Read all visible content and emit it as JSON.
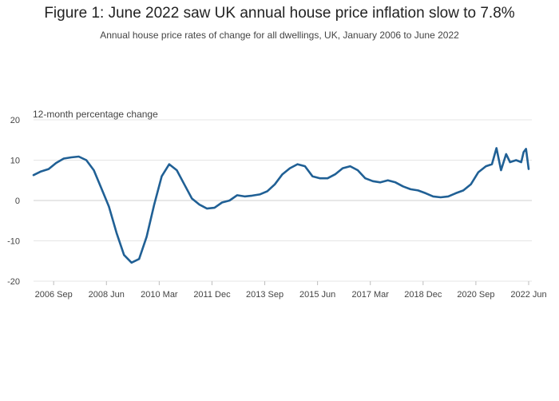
{
  "chart_data": {
    "type": "line",
    "title": "Figure 1: June 2022 saw UK annual house price inflation slow to 7.8%",
    "subtitle": "Annual house price rates of change for all dwellings, UK, January 2006 to June 2022",
    "ylabel": "12-month percentage change",
    "xlabel": "",
    "ylim": [
      -20,
      20
    ],
    "yticks": [
      20,
      10,
      0,
      -10,
      -20
    ],
    "xticks": [
      {
        "label": "2006 Sep",
        "t": 2006.667
      },
      {
        "label": "2008 Jun",
        "t": 2008.417
      },
      {
        "label": "2010 Mar",
        "t": 2010.167
      },
      {
        "label": "2011 Dec",
        "t": 2011.917
      },
      {
        "label": "2013 Sep",
        "t": 2013.667
      },
      {
        "label": "2015 Jun",
        "t": 2015.417
      },
      {
        "label": "2017 Mar",
        "t": 2017.167
      },
      {
        "label": "2018 Dec",
        "t": 2018.917
      },
      {
        "label": "2020 Sep",
        "t": 2020.667
      },
      {
        "label": "2022 Jun",
        "t": 2022.417
      }
    ],
    "xlim": [
      2006.0,
      2022.417
    ],
    "color": "#206095",
    "series": [
      {
        "name": "12-month percentage change",
        "points": [
          [
            2006.0,
            6.3
          ],
          [
            2006.25,
            7.2
          ],
          [
            2006.5,
            7.8
          ],
          [
            2006.75,
            9.3
          ],
          [
            2007.0,
            10.4
          ],
          [
            2007.25,
            10.7
          ],
          [
            2007.5,
            10.9
          ],
          [
            2007.75,
            10.0
          ],
          [
            2008.0,
            7.5
          ],
          [
            2008.25,
            3.0
          ],
          [
            2008.5,
            -1.5
          ],
          [
            2008.75,
            -8.0
          ],
          [
            2009.0,
            -13.5
          ],
          [
            2009.25,
            -15.4
          ],
          [
            2009.5,
            -14.5
          ],
          [
            2009.75,
            -9.0
          ],
          [
            2010.0,
            -1.0
          ],
          [
            2010.25,
            6.0
          ],
          [
            2010.5,
            9.0
          ],
          [
            2010.75,
            7.5
          ],
          [
            2011.0,
            4.0
          ],
          [
            2011.25,
            0.5
          ],
          [
            2011.5,
            -1.0
          ],
          [
            2011.75,
            -2.0
          ],
          [
            2012.0,
            -1.8
          ],
          [
            2012.25,
            -0.5
          ],
          [
            2012.5,
            0.0
          ],
          [
            2012.75,
            1.3
          ],
          [
            2013.0,
            1.0
          ],
          [
            2013.25,
            1.2
          ],
          [
            2013.5,
            1.5
          ],
          [
            2013.75,
            2.3
          ],
          [
            2014.0,
            4.0
          ],
          [
            2014.25,
            6.5
          ],
          [
            2014.5,
            8.0
          ],
          [
            2014.75,
            9.0
          ],
          [
            2015.0,
            8.5
          ],
          [
            2015.25,
            6.0
          ],
          [
            2015.5,
            5.5
          ],
          [
            2015.75,
            5.5
          ],
          [
            2016.0,
            6.5
          ],
          [
            2016.25,
            8.0
          ],
          [
            2016.5,
            8.5
          ],
          [
            2016.75,
            7.5
          ],
          [
            2017.0,
            5.5
          ],
          [
            2017.25,
            4.8
          ],
          [
            2017.5,
            4.5
          ],
          [
            2017.75,
            5.0
          ],
          [
            2018.0,
            4.5
          ],
          [
            2018.25,
            3.5
          ],
          [
            2018.5,
            2.8
          ],
          [
            2018.75,
            2.5
          ],
          [
            2019.0,
            1.8
          ],
          [
            2019.25,
            1.0
          ],
          [
            2019.5,
            0.8
          ],
          [
            2019.75,
            1.0
          ],
          [
            2020.0,
            1.8
          ],
          [
            2020.25,
            2.5
          ],
          [
            2020.5,
            4.0
          ],
          [
            2020.75,
            7.0
          ],
          [
            2021.0,
            8.5
          ],
          [
            2021.2,
            9.0
          ],
          [
            2021.35,
            13.0
          ],
          [
            2021.5,
            7.5
          ],
          [
            2021.67,
            11.5
          ],
          [
            2021.8,
            9.5
          ],
          [
            2022.0,
            10.0
          ],
          [
            2022.17,
            9.5
          ],
          [
            2022.25,
            12.0
          ],
          [
            2022.33,
            12.8
          ],
          [
            2022.417,
            7.8
          ]
        ]
      }
    ]
  }
}
